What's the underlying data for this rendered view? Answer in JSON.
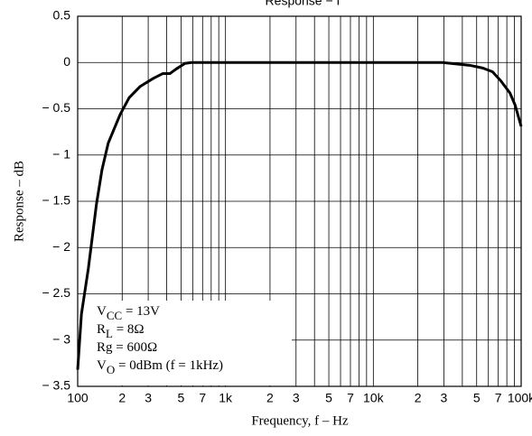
{
  "chart_data": {
    "type": "line",
    "title": "Response − f",
    "x_label": "Frequency, f  –  Hz",
    "y_label": "Response  –  dB",
    "log_x": true,
    "grid": true,
    "xlim": [
      100,
      100000
    ],
    "ylim": [
      -3.5,
      0.5
    ],
    "xticks": [
      {
        "value": 100,
        "label": "100"
      },
      {
        "value": 200,
        "label": "2"
      },
      {
        "value": 300,
        "label": "3"
      },
      {
        "value": 500,
        "label": "5"
      },
      {
        "value": 700,
        "label": "7"
      },
      {
        "value": 1000,
        "label": "1k"
      },
      {
        "value": 2000,
        "label": "2"
      },
      {
        "value": 3000,
        "label": "3"
      },
      {
        "value": 5000,
        "label": "5"
      },
      {
        "value": 7000,
        "label": "7"
      },
      {
        "value": 10000,
        "label": "10k"
      },
      {
        "value": 20000,
        "label": "2"
      },
      {
        "value": 30000,
        "label": "3"
      },
      {
        "value": 50000,
        "label": "5"
      },
      {
        "value": 70000,
        "label": "7"
      },
      {
        "value": 100000,
        "label": "100k"
      }
    ],
    "xminorticks": [
      400,
      600,
      800,
      900,
      4000,
      6000,
      8000,
      9000,
      40000,
      60000,
      80000,
      90000
    ],
    "yticks": [
      0.5,
      0,
      {
        "value": -0.5,
        "label": "− 0.5"
      },
      {
        "value": -1,
        "label": "− 1"
      },
      {
        "value": -1.5,
        "label": "− 1.5"
      },
      {
        "value": -2,
        "label": "− 2"
      },
      {
        "value": -2.5,
        "label": "− 2.5"
      },
      {
        "value": -3,
        "label": "− 3"
      },
      {
        "value": -3.5,
        "label": "− 3.5"
      }
    ],
    "annotations": [
      {
        "main": "V",
        "sub": "CC",
        "rest": " = 13V"
      },
      {
        "main": "R",
        "sub": "L",
        "rest": " = 8Ω"
      },
      {
        "main": "Rg = 600Ω",
        "sub": "",
        "rest": ""
      },
      {
        "main": "V",
        "sub": "O",
        "rest": " = 0dBm (f = 1kHz)"
      }
    ],
    "series": [
      {
        "color": "#000000",
        "x": [
          100,
          106,
          118,
          134,
          146,
          161,
          194,
          223,
          264,
          326,
          376,
          420,
          464,
          532,
          588,
          29300,
          44800,
          55000,
          64000,
          73000,
          84000,
          91000,
          100000
        ],
        "values": [
          -3.32,
          -2.72,
          -2.23,
          -1.53,
          -1.16,
          -0.87,
          -0.56,
          -0.38,
          -0.26,
          -0.17,
          -0.12,
          -0.12,
          -0.07,
          -0.01,
          0,
          0,
          -0.03,
          -0.06,
          -0.1,
          -0.2,
          -0.33,
          -0.46,
          -0.69
        ]
      }
    ]
  }
}
